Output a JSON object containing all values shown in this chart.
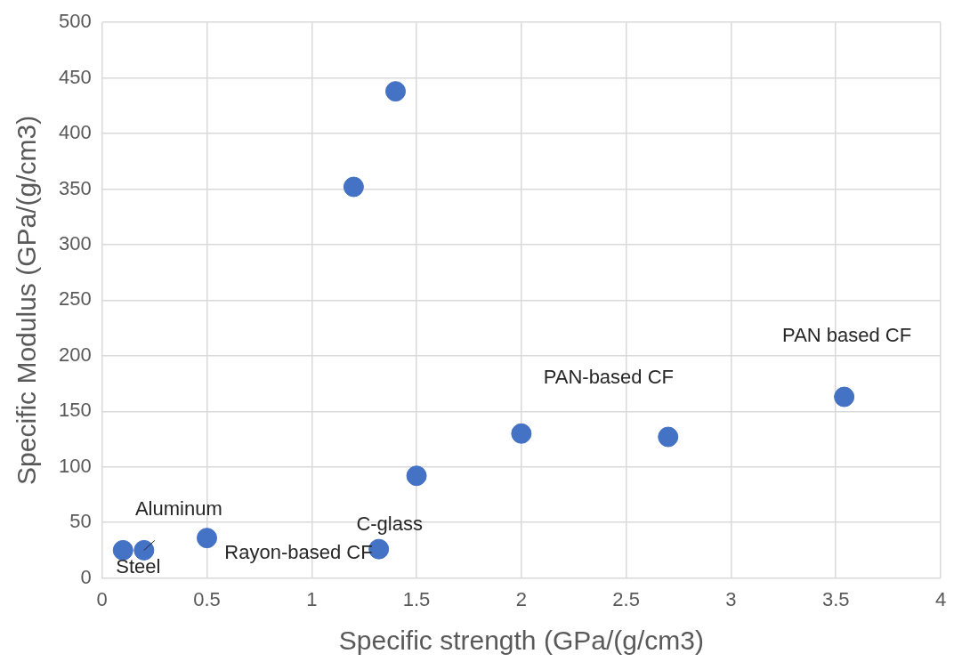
{
  "chart_data": {
    "type": "scatter",
    "xlabel": "Specific strength (GPa/(g/cm3)",
    "ylabel": "Specific Modulus (GPa/(g/cm3)",
    "x": [
      0.1,
      0.2,
      0.5,
      1.32,
      1.2,
      1.4,
      1.5,
      2.0,
      2.7,
      3.54
    ],
    "values": [
      25,
      25,
      36,
      26,
      352,
      438,
      92,
      130,
      127,
      163
    ],
    "color": "#4472c4",
    "marker": "circle",
    "xlim": [
      0,
      4
    ],
    "xticks": [
      0,
      0.5,
      1,
      1.5,
      2,
      2.5,
      3,
      3.5,
      4
    ],
    "ylim": [
      0,
      500
    ],
    "yticks": [
      0,
      50,
      100,
      150,
      200,
      250,
      300,
      350,
      400,
      450,
      500
    ],
    "grid": true,
    "legend": false,
    "annotations": [
      {
        "text": "Steel",
        "x": 0.1,
        "y": 25
      },
      {
        "text": "Aluminum",
        "x": 0.2,
        "y": 25
      },
      {
        "text": "Rayon-based CF",
        "x": 0.5,
        "y": 36
      },
      {
        "text": "C-glass",
        "x": 1.32,
        "y": 26
      },
      {
        "text": "PAN-based CF",
        "x": 2.0,
        "y": 130
      },
      {
        "text": "PAN based CF",
        "x": 3.54,
        "y": 163
      }
    ]
  }
}
